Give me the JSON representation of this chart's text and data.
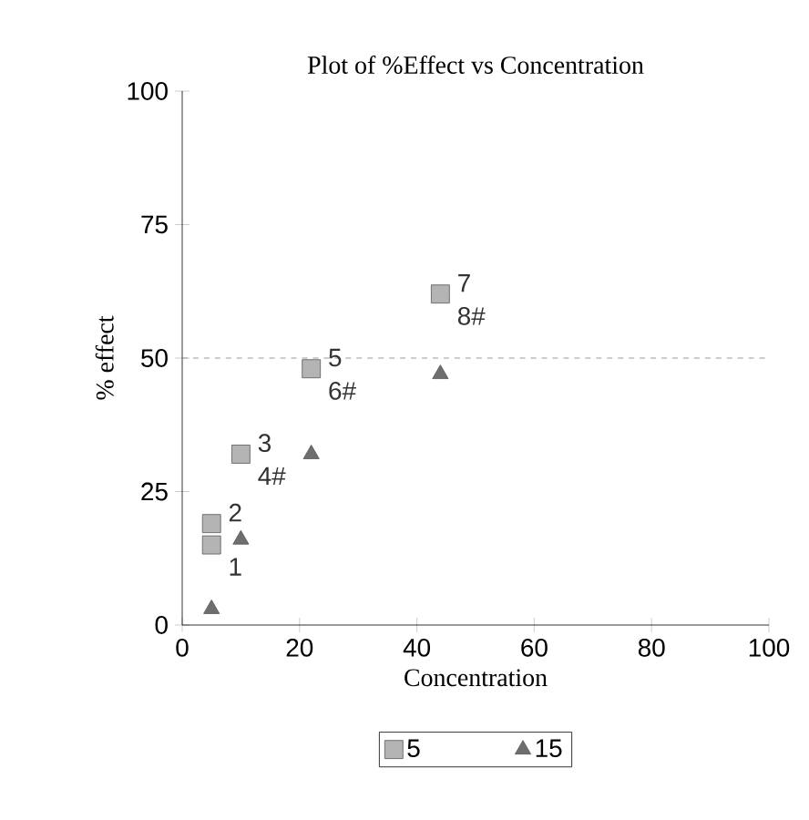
{
  "chart_data": {
    "type": "scatter",
    "title": "Plot of %Effect vs Concentration",
    "xlabel": "Concentration",
    "ylabel": "% effect",
    "series": [
      {
        "name": "5",
        "color": "#b4b4b4",
        "marker": "square",
        "x": [
          5,
          5,
          10,
          22,
          44
        ],
        "values": [
          15,
          19,
          32,
          48,
          62
        ]
      },
      {
        "name": "15",
        "color": "#6e6e6e",
        "marker": "triangle",
        "x": [
          5,
          10,
          22,
          44
        ],
        "values": [
          3,
          16,
          32,
          47
        ]
      }
    ],
    "annotations": [
      {
        "text": "1",
        "x": 5,
        "y": 15
      },
      {
        "text": "2",
        "x": 5,
        "y": 19
      },
      {
        "text": "3",
        "x": 10,
        "y": 32
      },
      {
        "text": "4#",
        "x": 10,
        "y": 32
      },
      {
        "text": "5",
        "x": 22,
        "y": 48
      },
      {
        "text": "6#",
        "x": 22,
        "y": 48
      },
      {
        "text": "7",
        "x": 44,
        "y": 62
      },
      {
        "text": "8#",
        "x": 44,
        "y": 62
      }
    ],
    "ref_lines": [
      {
        "axis": "y",
        "value": 50,
        "color": "#808080",
        "line_style": "dashed"
      }
    ],
    "xlim": [
      0,
      100
    ],
    "ylim": [
      0,
      100
    ],
    "xticks": [
      0,
      20,
      40,
      60,
      80,
      100
    ],
    "yticks": [
      0,
      25,
      50,
      75,
      100
    ],
    "grid": false,
    "legend": "bottom"
  }
}
